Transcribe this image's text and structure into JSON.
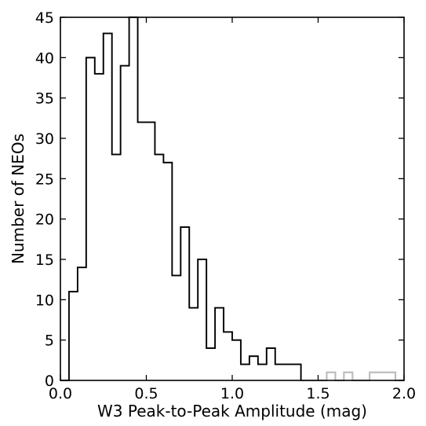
{
  "chart_data": {
    "type": "histogram-step",
    "xlabel": "W3 Peak-to-Peak Amplitude (mag)",
    "ylabel": "Number of NEOs",
    "xlim": [
      0.0,
      2.0
    ],
    "ylim": [
      0,
      45
    ],
    "x_tick_labels": [
      "0.0",
      "0.5",
      "1.0",
      "1.5",
      "2.0"
    ],
    "y_tick_labels": [
      "0",
      "5",
      "10",
      "15",
      "20",
      "25",
      "30",
      "35",
      "40",
      "45"
    ],
    "grid": false,
    "series": [
      {
        "color": "#bdbdbd",
        "bin_edges": [
          0.0,
          0.05,
          0.1,
          0.15,
          0.2,
          0.25,
          0.3,
          0.35,
          0.4,
          0.45,
          0.5,
          0.55,
          0.6,
          0.65,
          0.7,
          0.75,
          0.8,
          0.85,
          0.9,
          0.95,
          1.0,
          1.05,
          1.1,
          1.15,
          1.2,
          1.25,
          1.3,
          1.35,
          1.4,
          1.45,
          1.5,
          1.55,
          1.6,
          1.65,
          1.7,
          1.75,
          1.8,
          1.85,
          1.9,
          1.95,
          2.0
        ],
        "counts": [
          0,
          11,
          14,
          40,
          38,
          43,
          28,
          39,
          45,
          32,
          32,
          28,
          27,
          13,
          19,
          9,
          15,
          4,
          9,
          6,
          5,
          2,
          3,
          2,
          4,
          2,
          2,
          2,
          0,
          0,
          0,
          1,
          0,
          1,
          0,
          0,
          1,
          1,
          1,
          0
        ]
      },
      {
        "color": "#000000",
        "bin_edges": [
          0.0,
          0.05,
          0.1,
          0.15,
          0.2,
          0.25,
          0.3,
          0.35,
          0.4,
          0.45,
          0.5,
          0.55,
          0.6,
          0.65,
          0.7,
          0.75,
          0.8,
          0.85,
          0.9,
          0.95,
          1.0,
          1.05,
          1.1,
          1.15,
          1.2,
          1.25,
          1.3,
          1.35,
          1.4
        ],
        "counts": [
          0,
          11,
          14,
          40,
          38,
          43,
          28,
          39,
          45,
          32,
          32,
          28,
          27,
          13,
          19,
          9,
          15,
          4,
          9,
          6,
          5,
          2,
          3,
          2,
          4,
          2,
          2,
          2
        ]
      }
    ]
  }
}
